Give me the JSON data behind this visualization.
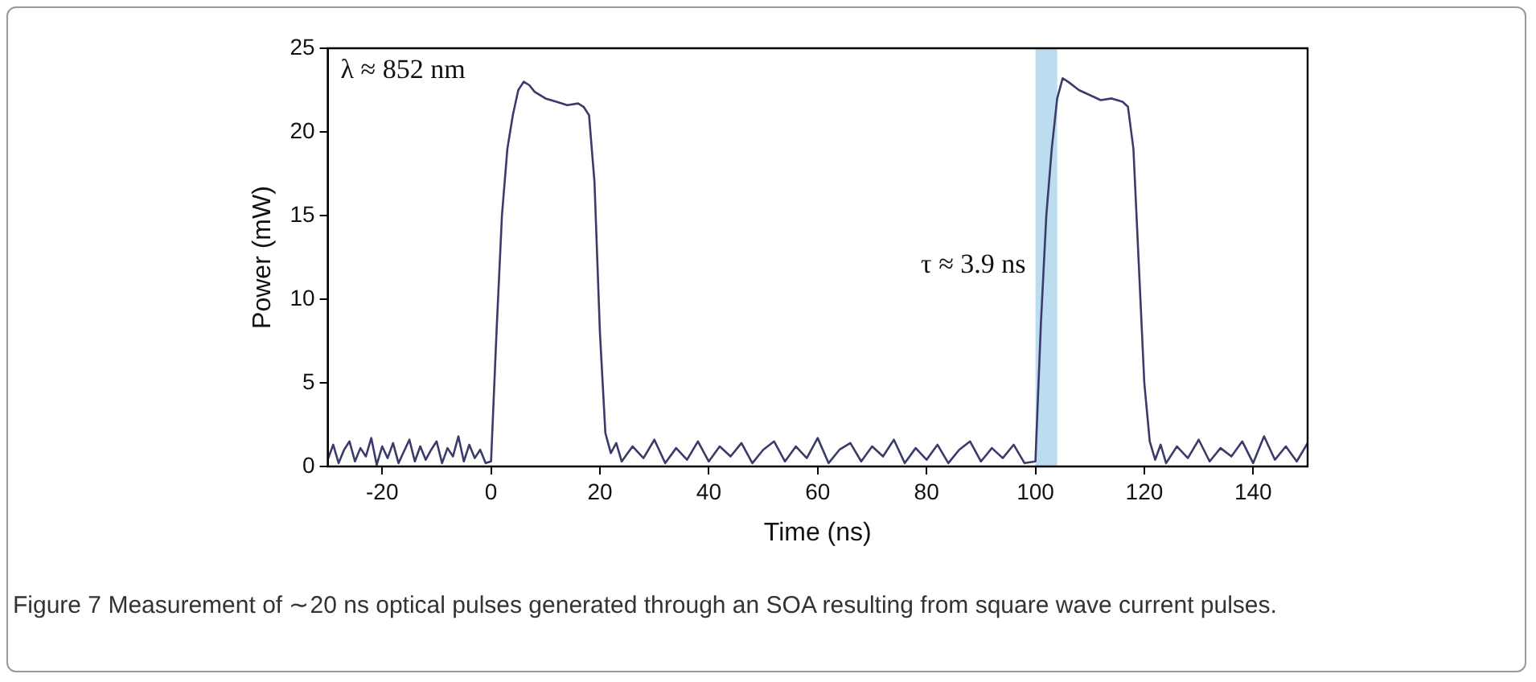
{
  "chart_data": {
    "type": "line",
    "xlabel": "Time (ns)",
    "ylabel": "Power (mW)",
    "xlim": [
      -30,
      150
    ],
    "xticks": [
      -20,
      0,
      20,
      40,
      60,
      80,
      100,
      120,
      140
    ],
    "ylim": [
      0,
      25
    ],
    "yticks": [
      0,
      5,
      10,
      15,
      20,
      25
    ],
    "grid": false,
    "legend": false,
    "marker": "none",
    "line_style": "solid",
    "bands": [
      {
        "axis": "x",
        "from": 100,
        "to": 104,
        "color": "#bcdcf0"
      }
    ],
    "annotations": [
      "λ ≈ 852 nm",
      {
        "text": "τ ≈ 3.9 ns",
        "x": 100,
        "y": 12
      },
      "Figure 7  Measurement of ∼20 ns optical pulses generated through an SOA resulting from square wave current pulses."
    ],
    "series": [
      {
        "color": "#3b3b6b",
        "x": [
          -30,
          -29,
          -28,
          -27,
          -26,
          -25,
          -24,
          -23,
          -22,
          -21,
          -20,
          -19,
          -18,
          -17,
          -16,
          -15,
          -14,
          -13,
          -12,
          -11,
          -10,
          -9,
          -8,
          -7,
          -6,
          -5,
          -4,
          -3,
          -2,
          -1,
          0,
          1,
          2,
          3,
          4,
          5,
          6,
          7,
          8,
          10,
          12,
          14,
          16,
          17,
          18,
          19,
          20,
          21,
          22,
          23,
          24,
          26,
          28,
          30,
          32,
          34,
          36,
          38,
          40,
          42,
          44,
          46,
          48,
          50,
          52,
          54,
          56,
          58,
          60,
          62,
          64,
          66,
          68,
          70,
          72,
          74,
          76,
          78,
          80,
          82,
          84,
          86,
          88,
          90,
          92,
          94,
          96,
          98,
          100,
          101,
          102,
          103,
          104,
          105,
          106,
          108,
          110,
          112,
          114,
          116,
          117,
          118,
          119,
          120,
          121,
          122,
          123,
          124,
          126,
          128,
          130,
          132,
          134,
          136,
          138,
          140,
          142,
          144,
          146,
          148,
          150
        ],
        "values": [
          0.4,
          1.3,
          0.2,
          1.0,
          1.5,
          0.3,
          1.1,
          0.6,
          1.7,
          0.1,
          1.2,
          0.5,
          1.4,
          0.2,
          0.9,
          1.6,
          0.3,
          1.2,
          0.4,
          1.0,
          1.5,
          0.2,
          1.1,
          0.6,
          1.8,
          0.3,
          1.3,
          0.5,
          1.0,
          0.2,
          0.3,
          8,
          15,
          19,
          21,
          22.5,
          23,
          22.8,
          22.4,
          22,
          21.8,
          21.6,
          21.7,
          21.5,
          21,
          17,
          8,
          2,
          0.8,
          1.4,
          0.3,
          1.2,
          0.5,
          1.6,
          0.2,
          1.1,
          0.4,
          1.5,
          0.3,
          1.2,
          0.6,
          1.4,
          0.2,
          1.0,
          1.5,
          0.3,
          1.2,
          0.5,
          1.7,
          0.2,
          1.0,
          1.4,
          0.3,
          1.2,
          0.6,
          1.6,
          0.2,
          1.1,
          0.4,
          1.3,
          0.2,
          1.0,
          1.5,
          0.3,
          1.1,
          0.5,
          1.3,
          0.2,
          0.3,
          8.5,
          15,
          19,
          22,
          23.2,
          23,
          22.5,
          22.2,
          21.9,
          22,
          21.8,
          21.5,
          19,
          12,
          5,
          1.5,
          0.4,
          1.3,
          0.2,
          1.2,
          0.5,
          1.6,
          0.3,
          1.1,
          0.6,
          1.5,
          0.2,
          1.8,
          0.4,
          1.2,
          0.3,
          1.4
        ]
      }
    ]
  }
}
